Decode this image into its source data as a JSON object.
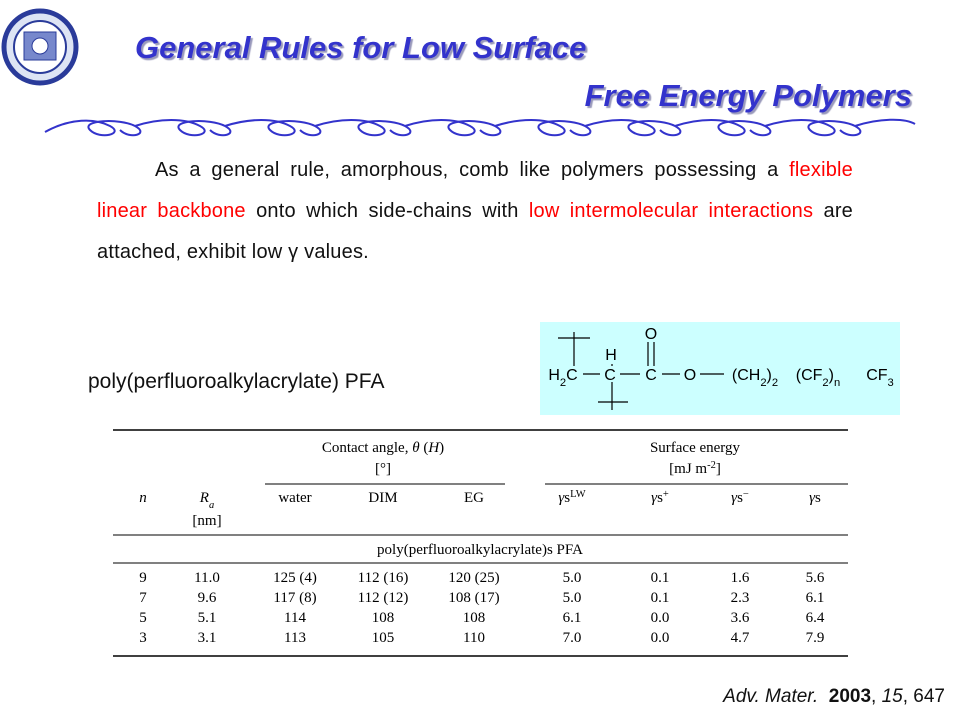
{
  "header": {
    "title_lines": [
      "General Rules for Low Surface",
      "Free Energy Polymers"
    ]
  },
  "body": {
    "paragraph": [
      {
        "t": "As a general rule, amorphous, comb like polymers possessing a "
      },
      {
        "t": "flexible linear backbone",
        "color": "#ff0000"
      },
      {
        "t": " onto which side-chains with "
      },
      {
        "t": "low intermolecular interactions",
        "color": "#ff0000"
      },
      {
        "t": " are attached, exhibit low γ values."
      }
    ]
  },
  "figure": {
    "label": "poly(perfluoroalkylacrylate) PFA",
    "structure": {
      "atoms": [
        [
          {
            "t": "O"
          }
        ],
        [
          {
            "t": "H"
          }
        ],
        [
          {
            "t": "H"
          },
          {
            "t": "2",
            "sub": true
          },
          {
            "t": "C"
          }
        ],
        [
          {
            "t": "C"
          }
        ],
        [
          {
            "t": "C"
          }
        ],
        [
          {
            "t": "O"
          }
        ],
        [
          {
            "t": "(CH"
          },
          {
            "t": "2",
            "sub": true
          },
          {
            "t": ")"
          },
          {
            "t": "2",
            "sub": true
          }
        ],
        [
          {
            "t": "(CF"
          },
          {
            "t": "2",
            "sub": true
          },
          {
            "t": ")"
          },
          {
            "t": "n",
            "sub": true
          }
        ],
        [
          {
            "t": "CF"
          },
          {
            "t": "3",
            "sub": true
          }
        ]
      ]
    }
  },
  "table": {
    "groups": [
      {
        "title": [
          {
            "t": "Contact angle, "
          },
          {
            "t": "θ",
            "i": true
          },
          {
            "t": " ("
          },
          {
            "t": "H",
            "i": true
          },
          {
            "t": ")"
          }
        ],
        "unit": [
          {
            "t": "[°]"
          }
        ]
      },
      {
        "title": [
          {
            "t": "Surface energy"
          }
        ],
        "unit": [
          {
            "t": "[mJ m"
          },
          {
            "t": "-2",
            "sup": true
          },
          {
            "t": "]"
          }
        ]
      }
    ],
    "columns": [
      {
        "label": [
          {
            "t": "n",
            "i": true
          }
        ]
      },
      {
        "label": [
          {
            "t": "R",
            "i": true
          },
          {
            "t": "a",
            "i": true,
            "sub": true
          }
        ],
        "unit": [
          {
            "t": "[nm]"
          }
        ]
      },
      {
        "label": [
          {
            "t": "water"
          }
        ]
      },
      {
        "label": [
          {
            "t": "DIM"
          }
        ]
      },
      {
        "label": [
          {
            "t": "EG"
          }
        ]
      },
      {
        "label": [
          {
            "t": "γ",
            "i": true
          },
          {
            "t": "s"
          },
          {
            "t": "LW",
            "sup": true
          }
        ]
      },
      {
        "label": [
          {
            "t": "γ",
            "i": true
          },
          {
            "t": "s"
          },
          {
            "t": "+",
            "sup": true
          }
        ]
      },
      {
        "label": [
          {
            "t": "γ",
            "i": true
          },
          {
            "t": "s"
          },
          {
            "t": "−",
            "sup": true
          }
        ]
      },
      {
        "label": [
          {
            "t": "γ",
            "i": true
          },
          {
            "t": "s"
          }
        ]
      }
    ],
    "section": "poly(perfluoroalkylacrylate)s PFA",
    "rows": [
      [
        "9",
        "11.0",
        "125 (4)",
        "112 (16)",
        "120 (25)",
        "5.0",
        "0.1",
        "1.6",
        "5.6"
      ],
      [
        "7",
        "9.6",
        "117 (8)",
        "112 (12)",
        "108 (17)",
        "5.0",
        "0.1",
        "2.3",
        "6.1"
      ],
      [
        "5",
        "5.1",
        "114",
        "108",
        "108",
        "6.1",
        "0.0",
        "3.6",
        "6.4"
      ],
      [
        "3",
        "3.1",
        "113",
        "105",
        "110",
        "7.0",
        "0.0",
        "4.7",
        "7.9"
      ]
    ]
  },
  "citation": [
    {
      "t": "Adv. Mater.",
      "i": true
    },
    {
      "t": "  "
    },
    {
      "t": "2003",
      "b": true
    },
    {
      "t": ", "
    },
    {
      "t": "15",
      "i": true
    },
    {
      "t": ", 647"
    }
  ]
}
